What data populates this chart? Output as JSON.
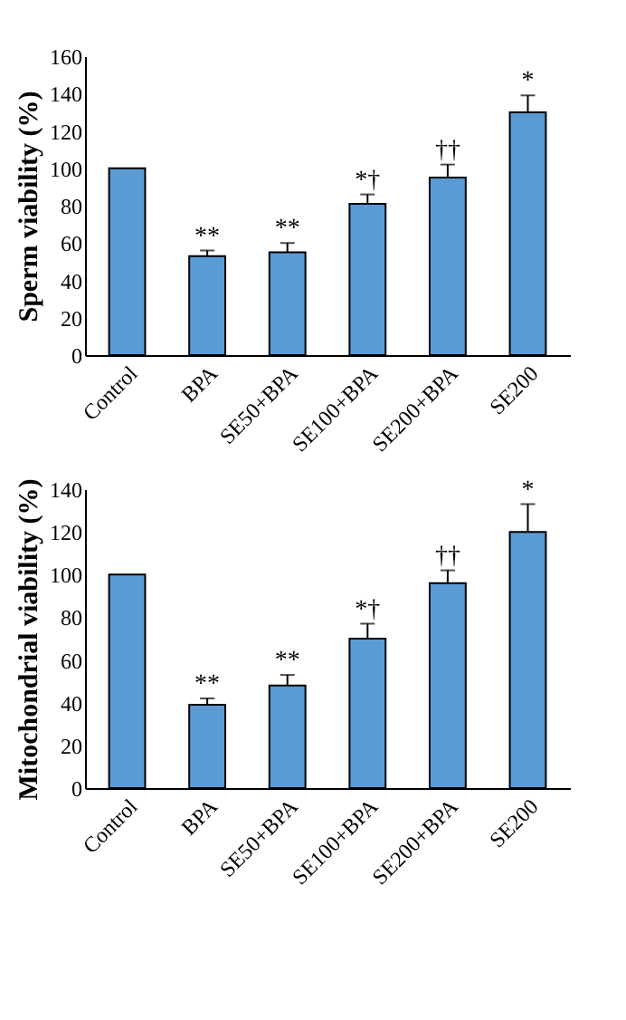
{
  "chart_data": [
    {
      "type": "bar",
      "ylabel": "Sperm viability (%)",
      "categories": [
        "Control",
        "BPA",
        "SE50+BPA",
        "SE100+BPA",
        "SE200+BPA",
        "SE200"
      ],
      "color": "#5b9bd5",
      "values": [
        100,
        53,
        55,
        81,
        95,
        130
      ],
      "errors": [
        null,
        [
          53,
          56
        ],
        [
          55,
          60
        ],
        [
          81,
          86
        ],
        [
          95,
          102
        ],
        [
          130,
          139
        ]
      ],
      "ylim": [
        0,
        160
      ],
      "yticks": [
        0,
        20,
        40,
        60,
        80,
        100,
        120,
        140,
        160
      ],
      "grid": false,
      "annotations": [
        {
          "text": "**",
          "x": "BPA",
          "y": 56
        },
        {
          "text": "**",
          "x": "SE50+BPA",
          "y": 60
        },
        {
          "text": "*†",
          "x": "SE100+BPA",
          "y": 86
        },
        {
          "text": "††",
          "x": "SE200+BPA",
          "y": 102
        },
        {
          "text": "*",
          "x": "SE200",
          "y": 139
        }
      ]
    },
    {
      "type": "bar",
      "ylabel": "Mitochondrial viability (%)",
      "categories": [
        "Control",
        "BPA",
        "SE50+BPA",
        "SE100+BPA",
        "SE200+BPA",
        "SE200"
      ],
      "color": "#5b9bd5",
      "values": [
        100,
        39,
        48,
        70,
        96,
        120
      ],
      "errors": [
        null,
        [
          39,
          42
        ],
        [
          48,
          53
        ],
        [
          70,
          77
        ],
        [
          96,
          102
        ],
        [
          120,
          133
        ]
      ],
      "ylim": [
        0,
        140
      ],
      "yticks": [
        0,
        20,
        40,
        60,
        80,
        100,
        120,
        140
      ],
      "grid": false,
      "annotations": [
        {
          "text": "**",
          "x": "BPA",
          "y": 42
        },
        {
          "text": "**",
          "x": "SE50+BPA",
          "y": 53
        },
        {
          "text": "*†",
          "x": "SE100+BPA",
          "y": 77
        },
        {
          "text": "††",
          "x": "SE200+BPA",
          "y": 102
        },
        {
          "text": "*",
          "x": "SE200",
          "y": 133
        }
      ]
    }
  ]
}
